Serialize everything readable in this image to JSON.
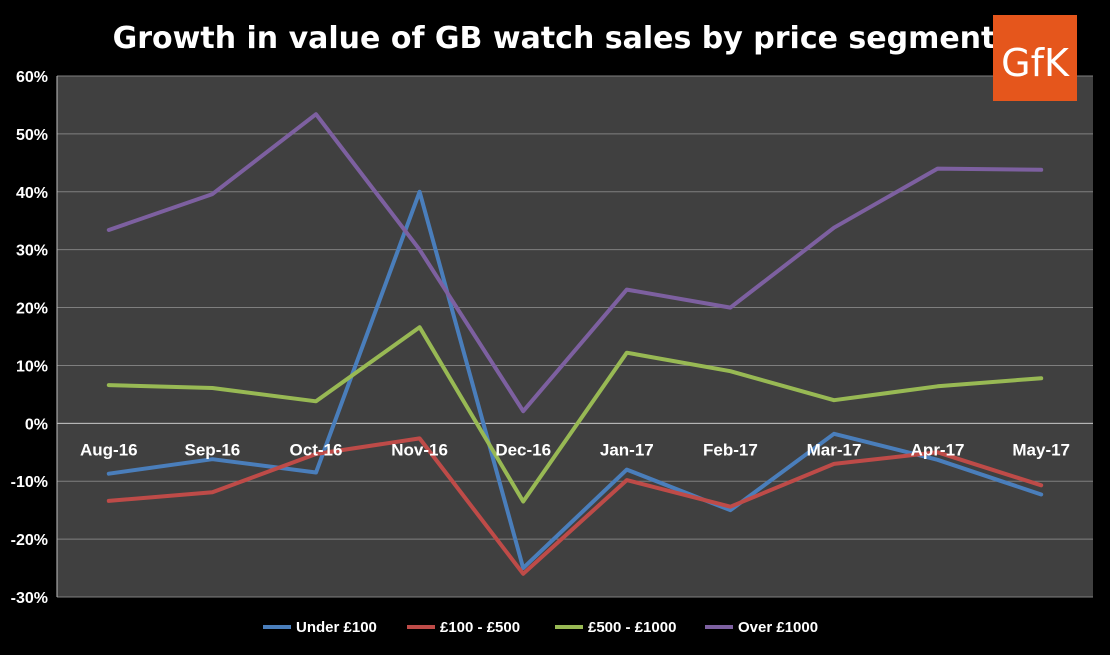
{
  "logo": {
    "text": "GfK"
  },
  "chart_data": {
    "type": "line",
    "title": "Growth in value of GB watch sales by price segment",
    "xlabel": "",
    "ylabel": "",
    "categories": [
      "Aug-16",
      "Sep-16",
      "Oct-16",
      "Nov-16",
      "Dec-16",
      "Jan-17",
      "Feb-17",
      "Mar-17",
      "Apr-17",
      "May-17"
    ],
    "ylim": [
      -30,
      60
    ],
    "ytick_step": 10,
    "ytick_format": "percent",
    "grid": true,
    "legend_position": "bottom",
    "series": [
      {
        "name": "Under £100",
        "color": "#4a7ebb",
        "values": [
          -8.7,
          -6.2,
          -8.5,
          40,
          -25,
          -8,
          -15,
          -1.8,
          -6.3,
          -12.3
        ]
      },
      {
        "name": "£100 - £500",
        "color": "#be4b48",
        "values": [
          -13.4,
          -11.9,
          -5.3,
          -2.6,
          -26,
          -9.8,
          -14.4,
          -7,
          -5,
          -10.7
        ]
      },
      {
        "name": "£500 - £1000",
        "color": "#98b954",
        "values": [
          6.6,
          6.1,
          3.8,
          16.6,
          -13.5,
          12.2,
          9,
          4,
          6.4,
          7.8
        ]
      },
      {
        "name": "Over £1000",
        "color": "#7d60a0",
        "values": [
          33.4,
          39.6,
          53.4,
          30,
          2.1,
          23.1,
          20,
          33.8,
          44,
          43.8
        ]
      }
    ]
  }
}
